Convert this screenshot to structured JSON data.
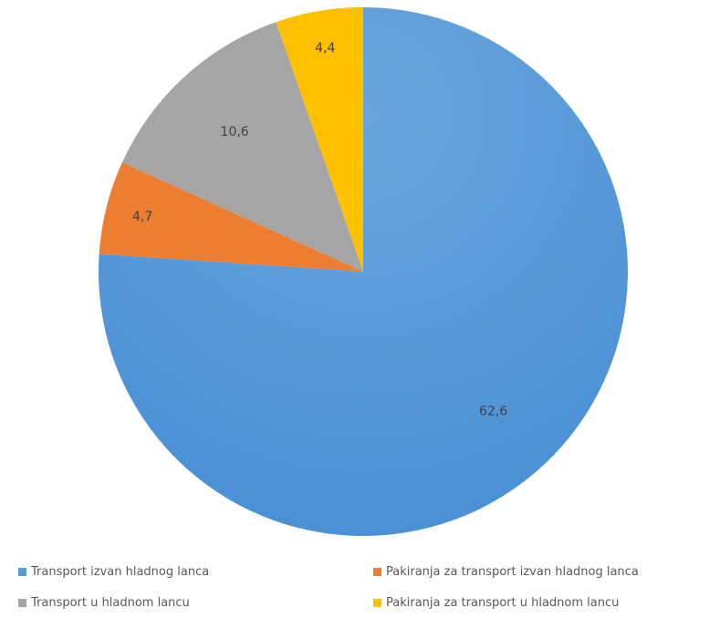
{
  "chart_data": {
    "type": "pie",
    "categories": [
      "Transport izvan hladnog lanca",
      "Pakiranja za transport izvan hladnog lanca",
      "Transport u hladnom lancu",
      "Pakiranja za transport u hladnom lancu"
    ],
    "values": [
      62.6,
      4.7,
      10.6,
      4.4
    ],
    "data_labels": [
      "62,6",
      "4,7",
      "10,6",
      "4,4"
    ],
    "colors": [
      "#5B9BD5",
      "#ED7D31",
      "#A5A5A5",
      "#FFC000"
    ],
    "legend_position": "bottom",
    "start": "top, clockwise"
  }
}
